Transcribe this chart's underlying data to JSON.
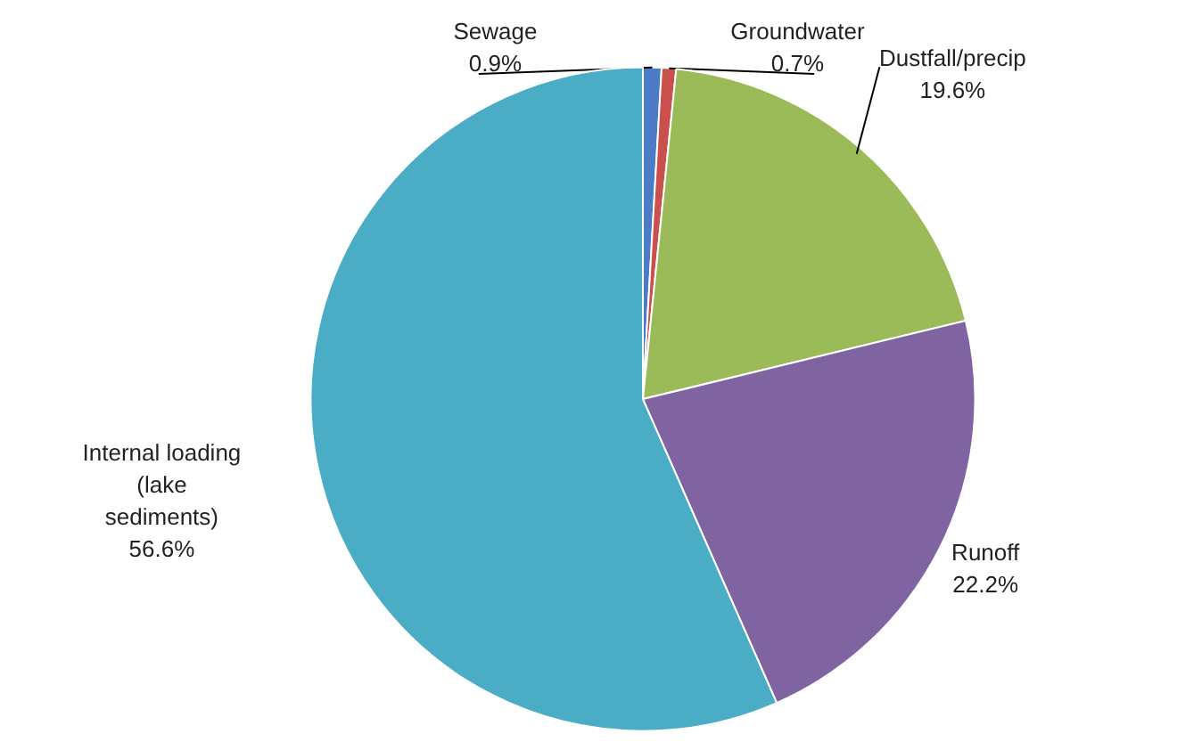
{
  "chart_data": {
    "type": "pie",
    "categories": [
      "Sewage",
      "Groundwater",
      "Dustfall/precip",
      "Runoff",
      "Internal loading\n(lake\nsediments)"
    ],
    "values": [
      0.9,
      0.7,
      19.6,
      22.2,
      56.6
    ],
    "colors": [
      "#4a7bc4",
      "#c9504d",
      "#9bbb59",
      "#8064a2",
      "#4bacc6"
    ],
    "value_labels": [
      "0.9%",
      "0.7%",
      "19.6%",
      "22.2%",
      "56.6%"
    ]
  }
}
